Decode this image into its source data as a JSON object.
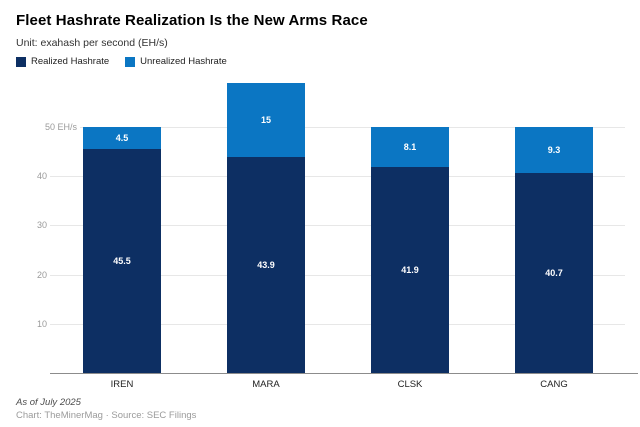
{
  "header": {
    "title": "Fleet Hashrate Realization Is the New Arms Race",
    "subtitle": "Unit: exahash per second (EH/s)"
  },
  "legend": {
    "items": [
      {
        "label": "Realized Hashrate",
        "color": "#0d2f63"
      },
      {
        "label": "Unrealized Hashrate",
        "color": "#0b76c3"
      }
    ]
  },
  "chart_data": {
    "type": "bar",
    "stacked": true,
    "title": "Fleet Hashrate Realization Is the New Arms Race",
    "subtitle": "Unit: exahash per second (EH/s)",
    "categories": [
      "IREN",
      "MARA",
      "CLSK",
      "CANG"
    ],
    "series": [
      {
        "name": "Realized Hashrate",
        "color": "#0d2f63",
        "values": [
          45.5,
          43.9,
          41.9,
          40.7
        ],
        "labels": [
          "45.5",
          "43.9",
          "41.9",
          "40.7"
        ]
      },
      {
        "name": "Unrealized Hashrate",
        "color": "#0b76c3",
        "values": [
          4.5,
          15,
          8.1,
          9.3
        ],
        "labels": [
          "4.5",
          "15",
          "8.1",
          "9.3"
        ]
      }
    ],
    "y_ticks": [
      {
        "value": 50,
        "label": "50 EH/s"
      },
      {
        "value": 40,
        "label": "40"
      },
      {
        "value": 30,
        "label": "30"
      },
      {
        "value": 20,
        "label": "20"
      },
      {
        "value": 10,
        "label": "10"
      }
    ],
    "ylim": [
      0,
      60
    ],
    "xlabel": "",
    "ylabel": "",
    "grid": "horizontal",
    "legend_position": "top-left",
    "value_label_color": "#ffffff"
  },
  "footer": {
    "note": "As of July 2025",
    "attribution": "Chart: TheMinerMag · Source: SEC Filings"
  }
}
